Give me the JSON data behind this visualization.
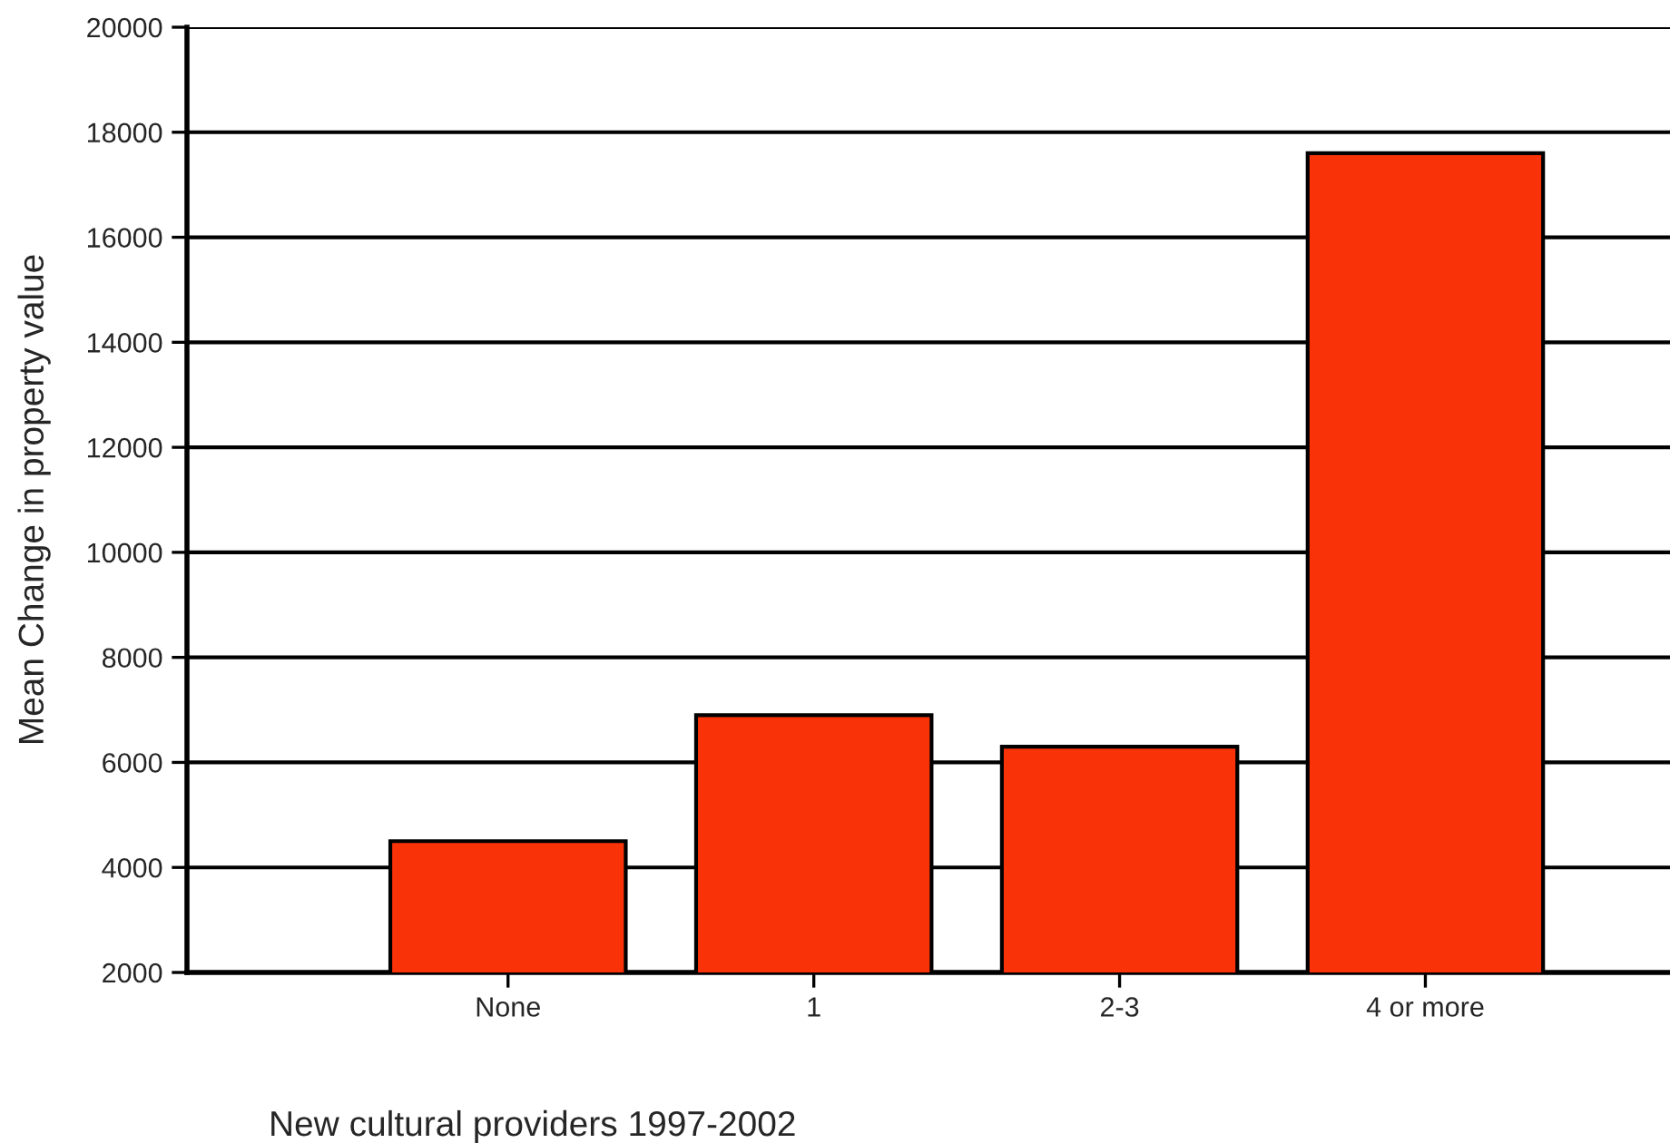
{
  "chart_data": {
    "type": "bar",
    "xlabel": "New cultural providers 1997-2002",
    "ylabel": "Mean Change in property value",
    "categories": [
      "None",
      "1",
      "2-3",
      "4 or more"
    ],
    "values": [
      4500,
      6900,
      6300,
      17600
    ],
    "color": "#f93208",
    "ylim": [
      2000,
      20000
    ],
    "yticks": [
      2000,
      4000,
      6000,
      8000,
      10000,
      12000,
      14000,
      16000,
      18000,
      20000
    ],
    "grid": "y"
  }
}
